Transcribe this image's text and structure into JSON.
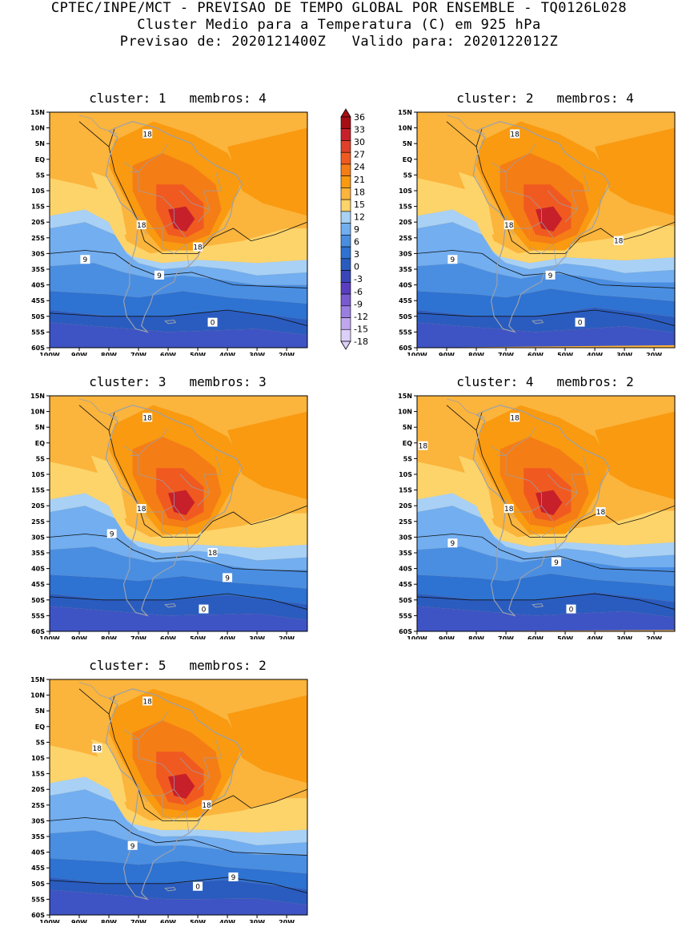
{
  "header": {
    "line1": "CPTEC/INPE/MCT - PREVISAO DE TEMPO GLOBAL POR ENSEMBLE - TQ0126L028",
    "line2": "Cluster Medio para a Temperatura (C) em 925 hPa",
    "line3": "Previsao de: 2020121400Z   Valido para: 2020122012Z"
  },
  "lat_ticks": [
    "15N",
    "10N",
    "5N",
    "EQ",
    "5S",
    "10S",
    "15S",
    "20S",
    "25S",
    "30S",
    "35S",
    "40S",
    "45S",
    "50S",
    "55S",
    "60S"
  ],
  "lon_ticks": [
    "100W",
    "90W",
    "80W",
    "70W",
    "60W",
    "50W",
    "40W",
    "30W",
    "20W"
  ],
  "colorbar": {
    "levels": [
      "36",
      "33",
      "30",
      "27",
      "24",
      "21",
      "18",
      "15",
      "12",
      "9",
      "6",
      "3",
      "0",
      "-3",
      "-6",
      "-9",
      "-12",
      "-15",
      "-18"
    ],
    "colors": [
      "#a50f15",
      "#c8202a",
      "#e0402a",
      "#f05a20",
      "#f57d15",
      "#f99a10",
      "#fbb43c",
      "#fdd46a",
      "#a9d1f5",
      "#72aef0",
      "#4a8ee2",
      "#2e72d2",
      "#2a5cc0",
      "#3a46b8",
      "#5a3ec0",
      "#7a5ad0",
      "#9a7ee0",
      "#bfa6ee",
      "#ddd0f8"
    ]
  },
  "clusters": [
    {
      "label": "cluster: 1   membros: 4",
      "contour_labels": [
        "18",
        "18",
        "18",
        "9",
        "9",
        "0"
      ]
    },
    {
      "label": "cluster: 2   membros: 4",
      "contour_labels": [
        "18",
        "18",
        "18",
        "9",
        "9",
        "0"
      ]
    },
    {
      "label": "cluster: 3   membros: 3",
      "contour_labels": [
        "18",
        "18",
        "18",
        "9",
        "9",
        "0"
      ]
    },
    {
      "label": "cluster: 4   membros: 2",
      "contour_labels": [
        "18",
        "18",
        "18",
        "18",
        "9",
        "9",
        "0"
      ]
    },
    {
      "label": "cluster: 5   membros: 2",
      "contour_labels": [
        "18",
        "18",
        "18",
        "9",
        "9",
        "0"
      ]
    }
  ]
}
